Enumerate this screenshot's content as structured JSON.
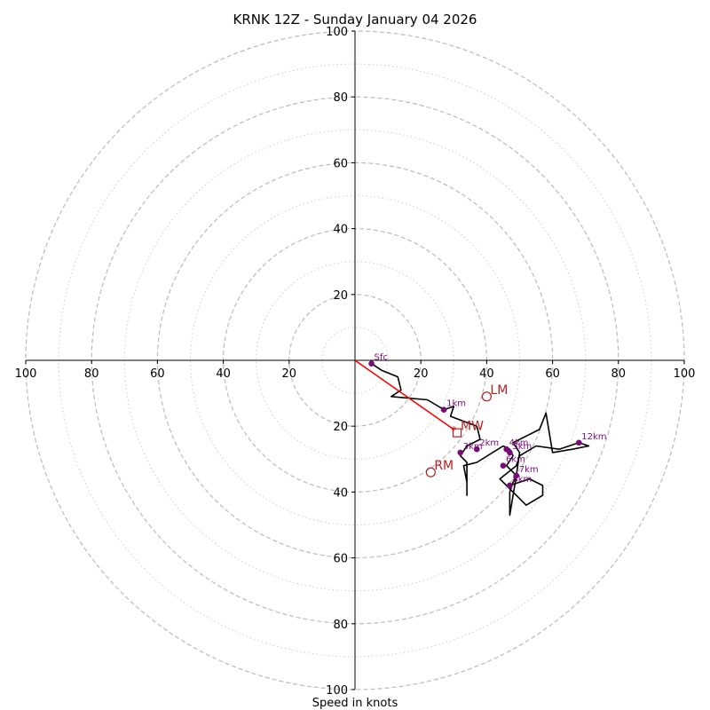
{
  "chart_data": {
    "type": "hodograph",
    "title": "KRNK 12Z - Sunday January 04 2026",
    "xlabel": "Speed in knots",
    "ring_ticks": [
      20,
      40,
      60,
      80,
      100
    ],
    "axis_ticks": [
      "100",
      "80",
      "60",
      "40",
      "20",
      "20",
      "40",
      "60",
      "80",
      "100"
    ],
    "axis_range": [
      -100,
      100
    ],
    "colors": {
      "hodo_line": "#000000",
      "height_marker": "#7a0a7a",
      "motion": "#b22222",
      "mean_wind_vector": "#ff0000",
      "grid_major": "#bbbbbb",
      "grid_minor": "#cccccc"
    },
    "trace": [
      [
        5,
        -1
      ],
      [
        8,
        -3
      ],
      [
        13,
        -5
      ],
      [
        14,
        -9
      ],
      [
        11,
        -11
      ],
      [
        22,
        -12
      ],
      [
        27,
        -15
      ],
      [
        30,
        -14
      ],
      [
        29,
        -17
      ],
      [
        37,
        -20
      ],
      [
        38,
        -24
      ],
      [
        34,
        -26
      ],
      [
        32,
        -29
      ],
      [
        34,
        -31
      ],
      [
        34,
        -36
      ],
      [
        34,
        -41
      ],
      [
        34,
        -37
      ],
      [
        33,
        -32
      ],
      [
        37,
        -31
      ],
      [
        45,
        -26
      ],
      [
        47,
        -27
      ],
      [
        48,
        -29
      ],
      [
        46,
        -32
      ],
      [
        48,
        -34
      ],
      [
        49,
        -35
      ],
      [
        48,
        -37
      ],
      [
        47,
        -40
      ],
      [
        47,
        -47
      ],
      [
        48,
        -41
      ],
      [
        49,
        -35
      ],
      [
        50,
        -28
      ],
      [
        48,
        -25
      ],
      [
        56,
        -21
      ],
      [
        58,
        -16
      ],
      [
        59,
        -22
      ],
      [
        60,
        -28
      ],
      [
        66,
        -27
      ],
      [
        71,
        -26
      ],
      [
        68,
        -25
      ],
      [
        62,
        -27
      ],
      [
        55,
        -26
      ],
      [
        50,
        -29
      ],
      [
        49,
        -32
      ],
      [
        44,
        -36
      ],
      [
        52,
        -44
      ],
      [
        57,
        -41
      ],
      [
        57,
        -38
      ],
      [
        53,
        -36
      ],
      [
        47,
        -38
      ]
    ],
    "markers": [
      {
        "label": "Sfc",
        "u": 5,
        "v": -1
      },
      {
        "label": "1km",
        "u": 27,
        "v": -15
      },
      {
        "label": "2km",
        "u": 37,
        "v": -27
      },
      {
        "label": "3km",
        "u": 32,
        "v": -28
      },
      {
        "label": "4km",
        "u": 46,
        "v": -27
      },
      {
        "label": "5km",
        "u": 47,
        "v": -28
      },
      {
        "label": "6km",
        "u": 45,
        "v": -32
      },
      {
        "label": "7km",
        "u": 49,
        "v": -35
      },
      {
        "label": "8km",
        "u": 47,
        "v": -38
      },
      {
        "label": "12km",
        "u": 68,
        "v": -25
      }
    ],
    "storm_motions": {
      "LM": {
        "label": "LM",
        "u": 40,
        "v": -11
      },
      "RM": {
        "label": "RM",
        "u": 23,
        "v": -34
      },
      "MW": {
        "label": "MW",
        "u": 31,
        "v": -22
      }
    },
    "mean_wind_vector_tip": [
      30,
      -21
    ]
  }
}
